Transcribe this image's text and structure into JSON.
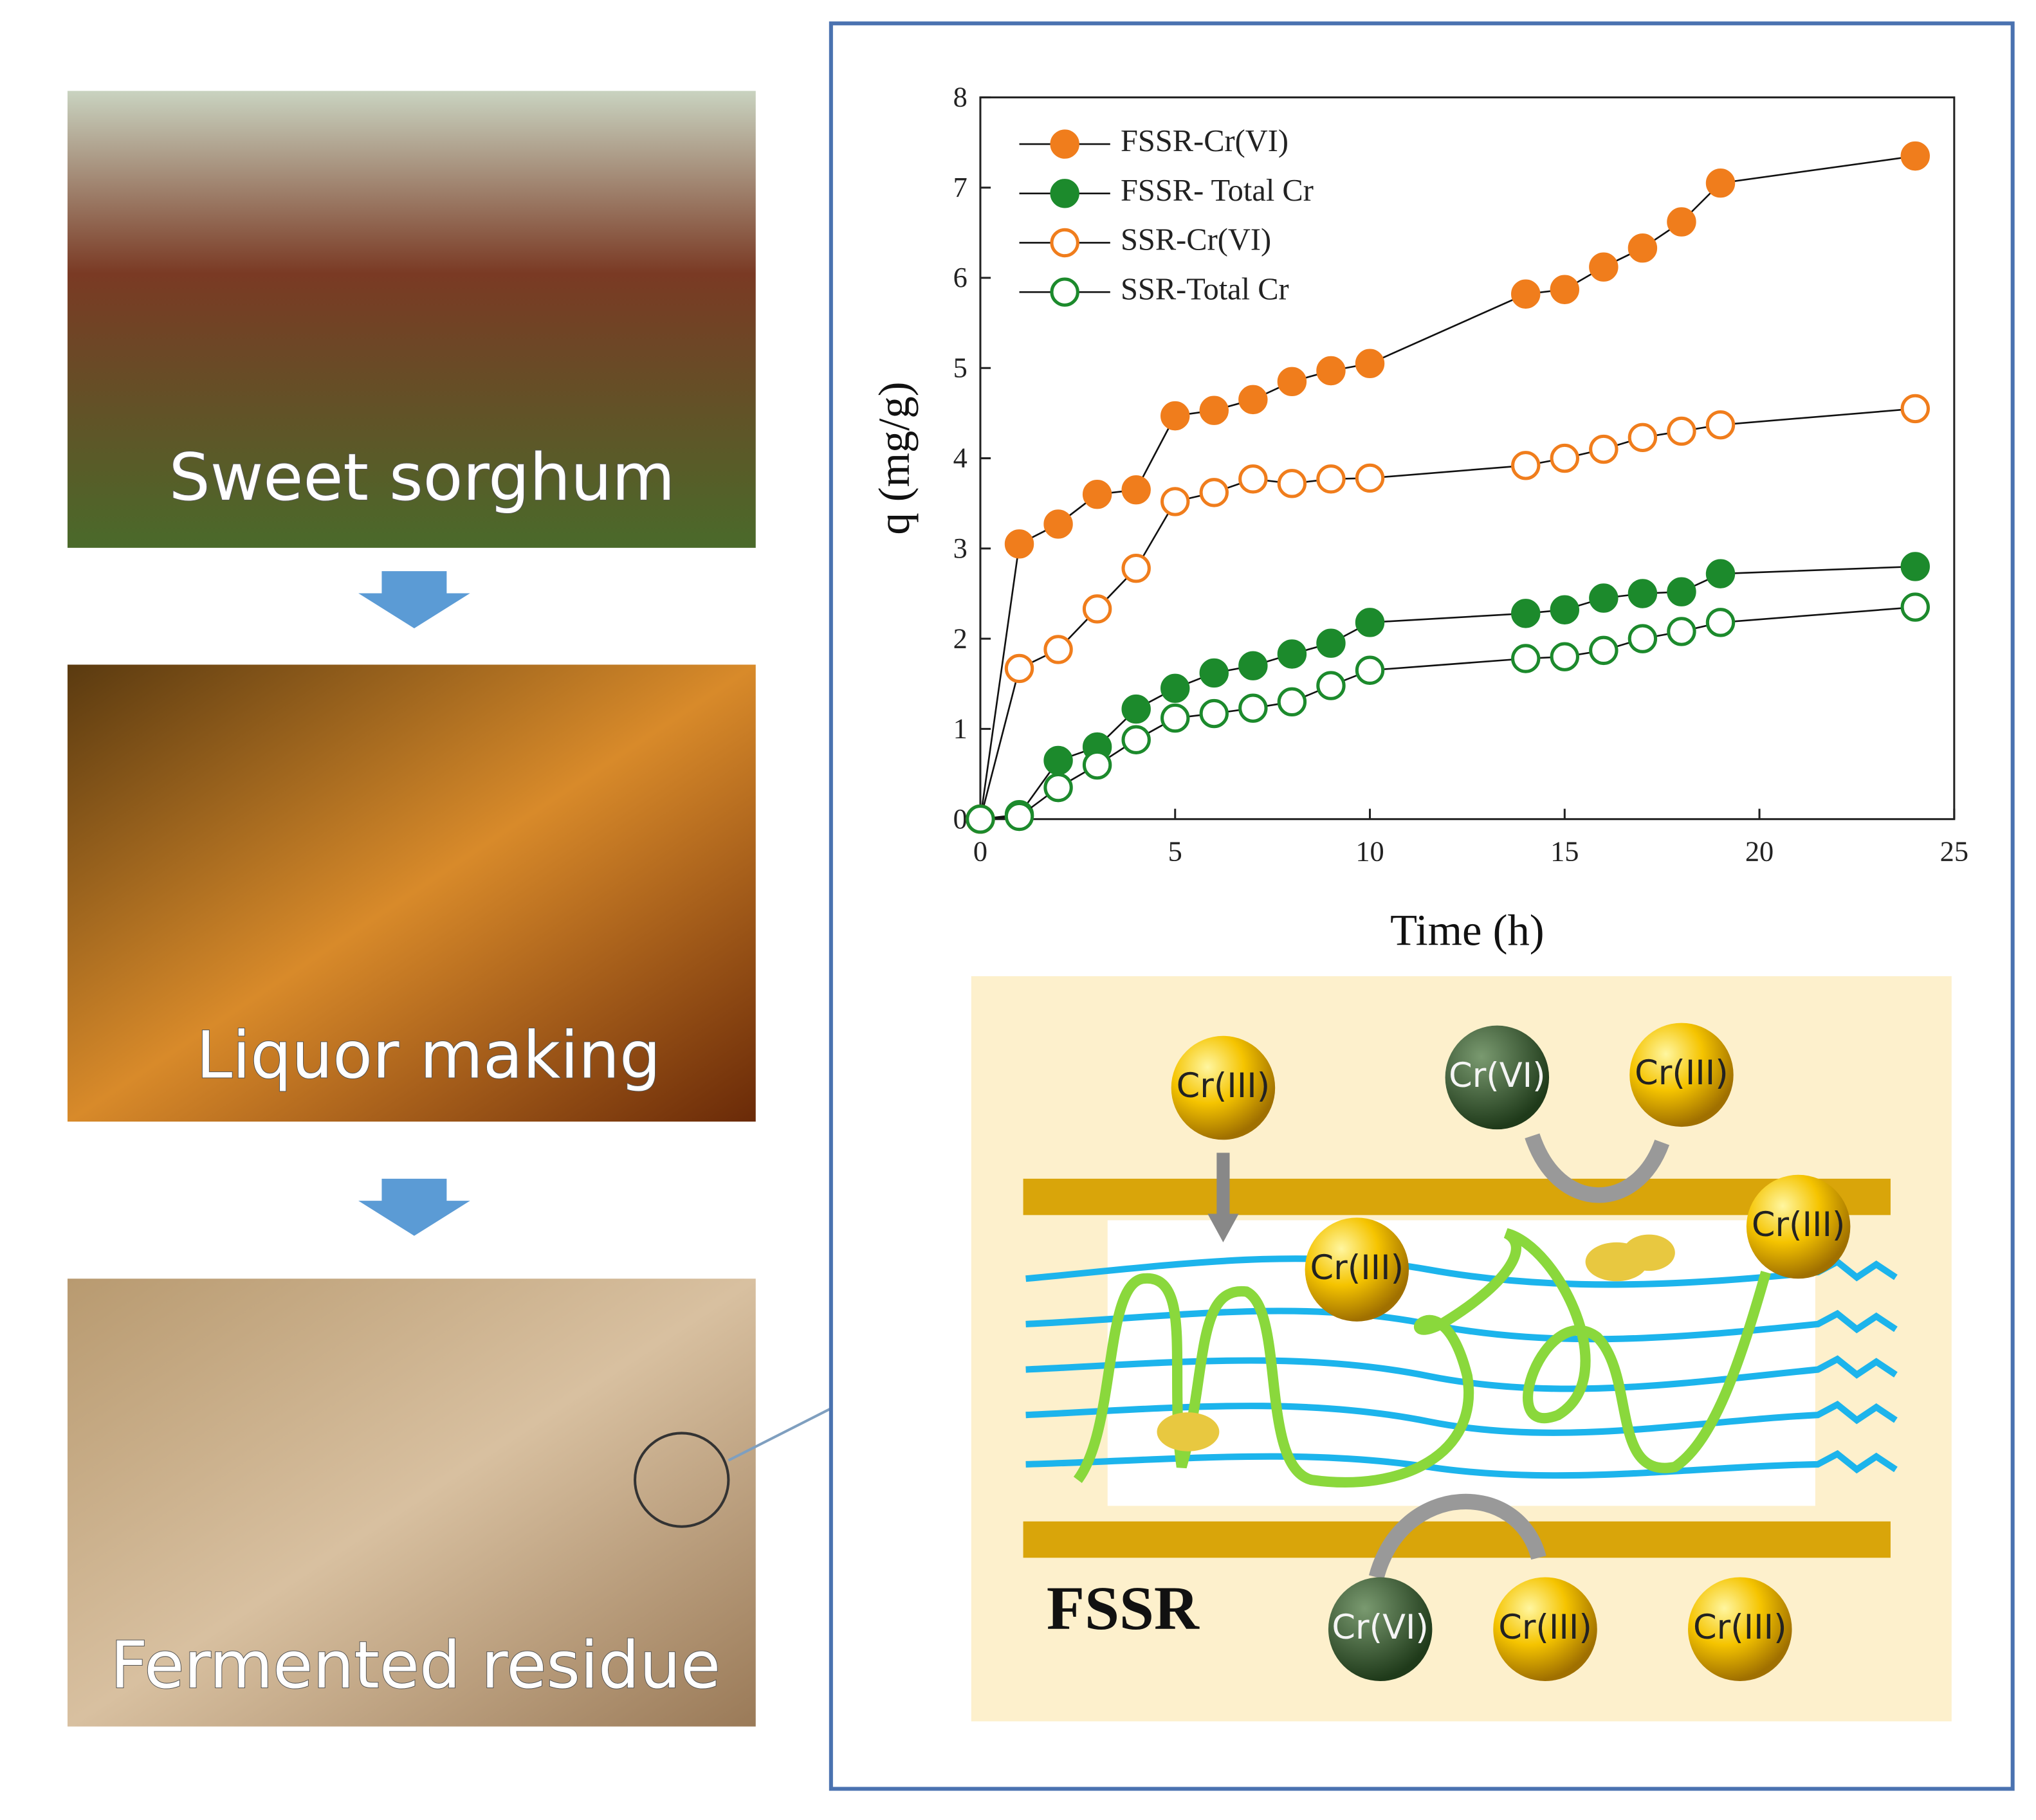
{
  "panels": [
    "Sweet sorghum",
    "Liquor making",
    "Fermented residue"
  ],
  "chart_data": {
    "type": "line",
    "x_label": "Time (h)",
    "y_label": "q (mg/g)",
    "x": [
      0,
      1,
      2,
      3,
      4,
      5,
      6,
      7,
      8,
      9,
      10,
      14,
      15,
      16,
      17,
      18,
      19,
      24
    ],
    "xlim": [
      0,
      25
    ],
    "ylim": [
      0,
      8
    ],
    "xticks": [
      0,
      5,
      10,
      15,
      20,
      25
    ],
    "yticks": [
      0,
      1,
      2,
      3,
      4,
      5,
      6,
      7,
      8
    ],
    "series": [
      {
        "name": "FSSR-Cr(VI)",
        "color": "#f07d1c",
        "filled": true,
        "values": [
          0,
          3.05,
          3.27,
          3.6,
          3.65,
          4.47,
          4.53,
          4.65,
          4.85,
          4.97,
          5.05,
          5.82,
          5.87,
          6.12,
          6.33,
          6.62,
          7.05,
          7.35
        ]
      },
      {
        "name": "FSSR- Total Cr",
        "color": "#1c8a2c",
        "filled": true,
        "values": [
          0,
          0.05,
          0.65,
          0.8,
          1.22,
          1.45,
          1.62,
          1.7,
          1.83,
          1.95,
          2.18,
          2.28,
          2.32,
          2.45,
          2.5,
          2.52,
          2.72,
          2.8
        ]
      },
      {
        "name": "SSR-Cr(VI)",
        "color": "#f07d1c",
        "filled": false,
        "values": [
          0,
          1.67,
          1.88,
          2.33,
          2.78,
          3.52,
          3.62,
          3.77,
          3.72,
          3.77,
          3.78,
          3.92,
          4.0,
          4.1,
          4.23,
          4.3,
          4.37,
          4.55
        ]
      },
      {
        "name": "SSR-Total Cr",
        "color": "#1c8a2c",
        "filled": false,
        "values": [
          0,
          0.03,
          0.35,
          0.6,
          0.88,
          1.12,
          1.17,
          1.23,
          1.3,
          1.48,
          1.65,
          1.78,
          1.8,
          1.87,
          2.0,
          2.08,
          2.18,
          2.35
        ]
      }
    ]
  },
  "diagram": {
    "label": "FSSR",
    "ions": [
      "Cr(III)",
      "Cr(VI)",
      "Cr(III)",
      "Cr(III)",
      "Cr(III)",
      "Cr(VI)",
      "Cr(III)",
      "Cr(III)"
    ]
  }
}
